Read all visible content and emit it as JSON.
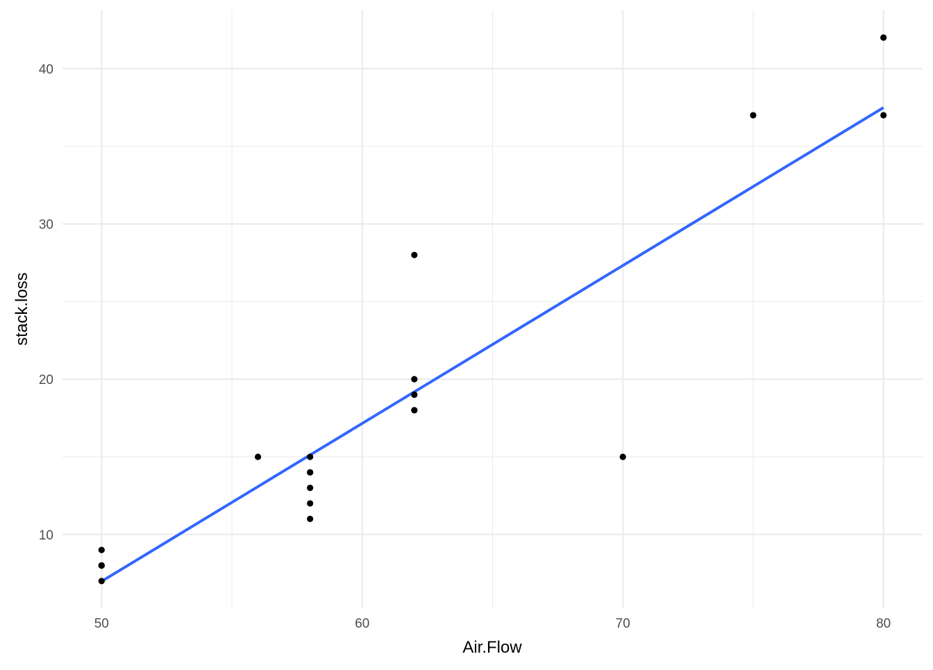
{
  "chart_data": {
    "type": "scatter",
    "title": "",
    "xlabel": "Air.Flow",
    "ylabel": "stack.loss",
    "xlim": [
      48.5,
      81.5
    ],
    "ylim": [
      5.25,
      43.75
    ],
    "x_ticks": [
      50,
      60,
      70,
      80
    ],
    "x_minor": [
      55,
      65,
      75
    ],
    "y_ticks": [
      10,
      20,
      30,
      40
    ],
    "y_minor": [
      15,
      25,
      35
    ],
    "grid": true,
    "points": [
      {
        "x": 80,
        "y": 42
      },
      {
        "x": 80,
        "y": 37
      },
      {
        "x": 75,
        "y": 37
      },
      {
        "x": 62,
        "y": 28
      },
      {
        "x": 62,
        "y": 18
      },
      {
        "x": 62,
        "y": 18
      },
      {
        "x": 62,
        "y": 19
      },
      {
        "x": 62,
        "y": 20
      },
      {
        "x": 58,
        "y": 15
      },
      {
        "x": 58,
        "y": 14
      },
      {
        "x": 58,
        "y": 14
      },
      {
        "x": 58,
        "y": 13
      },
      {
        "x": 58,
        "y": 11
      },
      {
        "x": 58,
        "y": 12
      },
      {
        "x": 50,
        "y": 8
      },
      {
        "x": 50,
        "y": 7
      },
      {
        "x": 50,
        "y": 8
      },
      {
        "x": 50,
        "y": 8
      },
      {
        "x": 50,
        "y": 9
      },
      {
        "x": 56,
        "y": 15
      },
      {
        "x": 70,
        "y": 15
      }
    ],
    "trend_line": {
      "method": "lm",
      "x": [
        50,
        80
      ],
      "y": [
        6.98,
        37.49
      ]
    },
    "colors": {
      "points": "#000000",
      "line": "#3366FF",
      "grid": "#ebebeb"
    }
  }
}
